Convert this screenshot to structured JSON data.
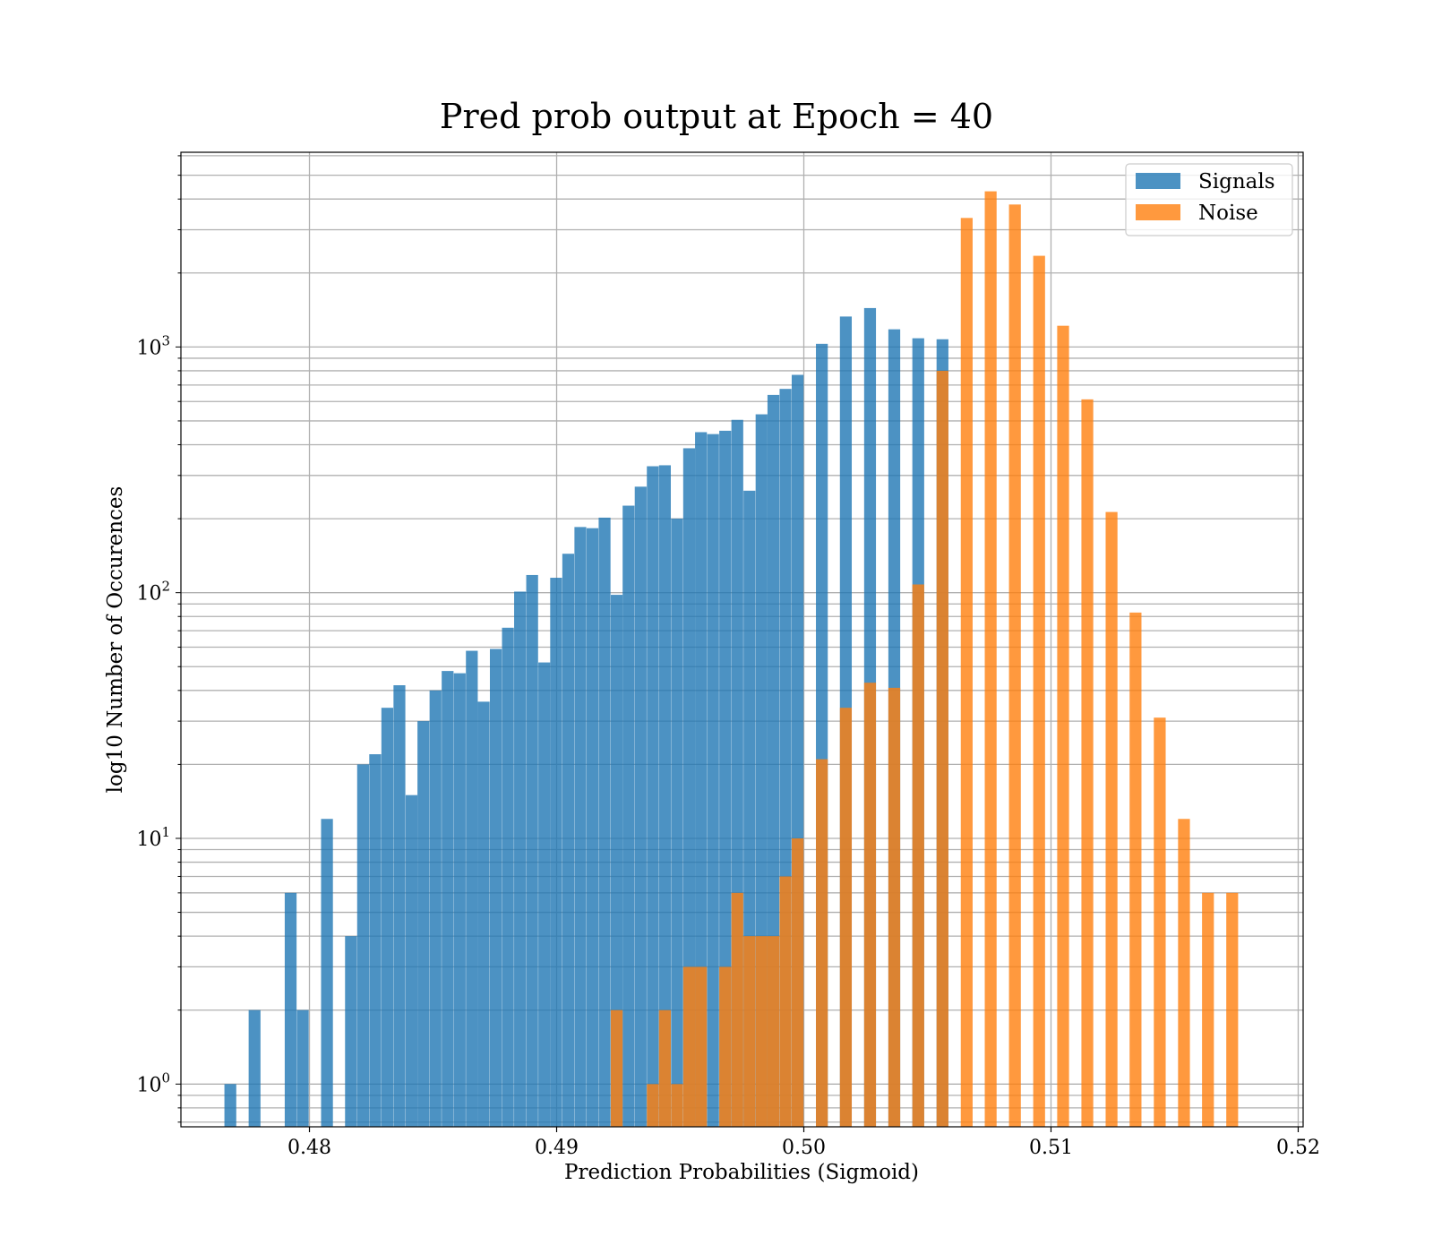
{
  "chart_data": {
    "type": "bar",
    "title": "Pred prob output at Epoch = 40",
    "xlabel": "Prediction Probabilities (Sigmoid)",
    "ylabel": "log10 Number of Occurences",
    "xlim": [
      0.4748,
      0.5202
    ],
    "ylim": [
      0.67,
      6200
    ],
    "yscale": "log",
    "xticks": [
      {
        "value": 0.48,
        "label": "0.48"
      },
      {
        "value": 0.49,
        "label": "0.49"
      },
      {
        "value": 0.5,
        "label": "0.50"
      },
      {
        "value": 0.51,
        "label": "0.51"
      },
      {
        "value": 0.52,
        "label": "0.52"
      }
    ],
    "yticks": [
      {
        "value": 1,
        "base": "10",
        "exp": "0"
      },
      {
        "value": 10,
        "base": "10",
        "exp": "1"
      },
      {
        "value": 100,
        "base": "10",
        "exp": "2"
      },
      {
        "value": 1000,
        "base": "10",
        "exp": "3"
      }
    ],
    "grid": true,
    "legend_position": "top-right",
    "series": [
      {
        "name": "Signals",
        "color": "#1f77b4",
        "opacity": 0.8,
        "points": [
          [
            0.47705,
            1
          ],
          [
            0.47803,
            2
          ],
          [
            0.479,
            0
          ],
          [
            0.47949,
            6
          ],
          [
            0.47998,
            2
          ],
          [
            0.48096,
            12
          ],
          [
            0.48193,
            4
          ],
          [
            0.48242,
            20
          ],
          [
            0.48291,
            22
          ],
          [
            0.4834,
            34
          ],
          [
            0.48389,
            42
          ],
          [
            0.48438,
            15
          ],
          [
            0.48486,
            30
          ],
          [
            0.48535,
            40
          ],
          [
            0.48584,
            48
          ],
          [
            0.48633,
            47
          ],
          [
            0.48682,
            58
          ],
          [
            0.4873,
            36
          ],
          [
            0.48779,
            59
          ],
          [
            0.48828,
            72
          ],
          [
            0.48877,
            101
          ],
          [
            0.48926,
            118
          ],
          [
            0.48975,
            52
          ],
          [
            0.49023,
            115
          ],
          [
            0.49072,
            144
          ],
          [
            0.49121,
            185
          ],
          [
            0.4917,
            183
          ],
          [
            0.49219,
            202
          ],
          [
            0.49268,
            98
          ],
          [
            0.49316,
            226
          ],
          [
            0.49365,
            270
          ],
          [
            0.49414,
            327
          ],
          [
            0.49463,
            330
          ],
          [
            0.49512,
            200
          ],
          [
            0.49561,
            387
          ],
          [
            0.49609,
            450
          ],
          [
            0.49658,
            442
          ],
          [
            0.49707,
            456
          ],
          [
            0.49756,
            505
          ],
          [
            0.49805,
            260
          ],
          [
            0.49854,
            532
          ],
          [
            0.49902,
            638
          ],
          [
            0.49951,
            675
          ],
          [
            0.5,
            770
          ],
          [
            0.50098,
            1030
          ],
          [
            0.50195,
            1330
          ],
          [
            0.50293,
            1440
          ],
          [
            0.50391,
            1180
          ],
          [
            0.50488,
            1085
          ],
          [
            0.50586,
            1075
          ]
        ]
      },
      {
        "name": "Noise",
        "color": "#ff7f0e",
        "opacity": 0.8,
        "points": [
          [
            0.49268,
            2
          ],
          [
            0.49414,
            1
          ],
          [
            0.49463,
            2
          ],
          [
            0.49512,
            1
          ],
          [
            0.49561,
            3
          ],
          [
            0.49609,
            3
          ],
          [
            0.49707,
            3
          ],
          [
            0.49756,
            6
          ],
          [
            0.49805,
            4
          ],
          [
            0.49854,
            4
          ],
          [
            0.49902,
            4
          ],
          [
            0.49951,
            7
          ],
          [
            0.5,
            10
          ],
          [
            0.50098,
            21
          ],
          [
            0.50195,
            34
          ],
          [
            0.50293,
            43
          ],
          [
            0.50391,
            41
          ],
          [
            0.50488,
            108
          ],
          [
            0.50586,
            800
          ],
          [
            0.50684,
            3350
          ],
          [
            0.50781,
            4300
          ],
          [
            0.50879,
            3800
          ],
          [
            0.50977,
            2350
          ],
          [
            0.51074,
            1220
          ],
          [
            0.51172,
            612
          ],
          [
            0.5127,
            213
          ],
          [
            0.51367,
            83
          ],
          [
            0.51465,
            31
          ],
          [
            0.51563,
            12
          ],
          [
            0.5166,
            6
          ],
          [
            0.51758,
            6
          ]
        ]
      }
    ]
  }
}
